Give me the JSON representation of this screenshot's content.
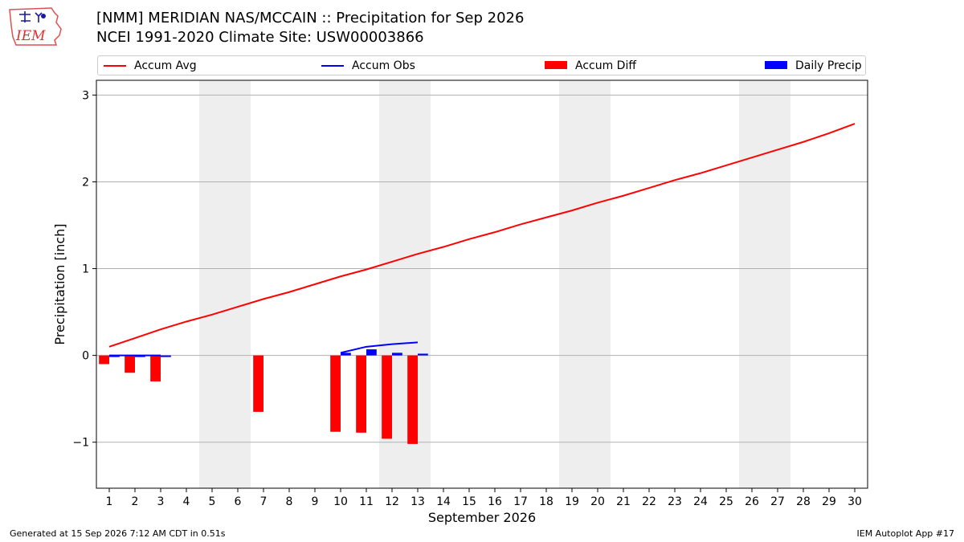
{
  "header": {
    "title_line1": "[NMM] MERIDIAN NAS/MCCAIN :: Precipitation for Sep 2026",
    "title_line2": "NCEI 1991-2020 Climate Site: USW00003866"
  },
  "logo": {
    "text": "IEM"
  },
  "footer": {
    "generated": "Generated at 15 Sep 2026 7:12 AM CDT in 0.51s",
    "app": "IEM Autoplot App #17"
  },
  "colors": {
    "avg": "#ff0000",
    "obs": "#0000ff",
    "diff": "#ff0000",
    "daily": "#0000ff",
    "weekend": "#eeeeee",
    "grid": "#b0b0b0"
  },
  "chart_data": {
    "type": "bar",
    "xlabel": "September 2026",
    "ylabel": "Precipitation [inch]",
    "xlim": [
      0.5,
      30.5
    ],
    "ylim": [
      -1.53,
      3.17
    ],
    "yticks": [
      3,
      2,
      1,
      0,
      -1
    ],
    "ytick_labels": [
      "3",
      "2",
      "1",
      "0",
      "−1"
    ],
    "grid": "horizontal",
    "legend": "top",
    "days": [
      1,
      2,
      3,
      4,
      5,
      6,
      7,
      8,
      9,
      10,
      11,
      12,
      13,
      14,
      15,
      16,
      17,
      18,
      19,
      20,
      21,
      22,
      23,
      24,
      25,
      26,
      27,
      28,
      29,
      30
    ],
    "weekend_spans": [
      [
        4.5,
        6.5
      ],
      [
        11.5,
        13.5
      ],
      [
        18.5,
        20.5
      ],
      [
        25.5,
        27.5
      ]
    ],
    "series": [
      {
        "name": "Accum Avg",
        "kind": "line",
        "x": [
          1,
          2,
          3,
          4,
          5,
          6,
          7,
          8,
          9,
          10,
          11,
          12,
          13,
          14,
          15,
          16,
          17,
          18,
          19,
          20,
          21,
          22,
          23,
          24,
          25,
          26,
          27,
          28,
          29,
          30
        ],
        "values": [
          0.1,
          0.2,
          0.3,
          0.39,
          0.47,
          0.56,
          0.65,
          0.73,
          0.82,
          0.91,
          0.99,
          1.08,
          1.17,
          1.25,
          1.34,
          1.42,
          1.51,
          1.59,
          1.67,
          1.76,
          1.84,
          1.93,
          2.02,
          2.1,
          2.19,
          2.28,
          2.37,
          2.46,
          2.56,
          2.67
        ]
      },
      {
        "name": "Accum Obs",
        "kind": "line",
        "x": [
          1,
          2,
          3,
          10,
          11,
          12,
          13
        ],
        "values": [
          0.0,
          0.0,
          0.0,
          0.03,
          0.1,
          0.13,
          0.15
        ]
      },
      {
        "name": "Accum Diff",
        "kind": "bar",
        "x": [
          1,
          2,
          3,
          7,
          10,
          11,
          12,
          13
        ],
        "values": [
          -0.1,
          -0.2,
          -0.3,
          -0.65,
          -0.88,
          -0.89,
          -0.96,
          -1.02
        ]
      },
      {
        "name": "Daily Precip",
        "kind": "bar",
        "x": [
          1,
          2,
          3,
          10,
          11,
          12,
          13
        ],
        "values": [
          0.0,
          0.0,
          0.0,
          0.03,
          0.07,
          0.03,
          0.02
        ]
      }
    ]
  }
}
